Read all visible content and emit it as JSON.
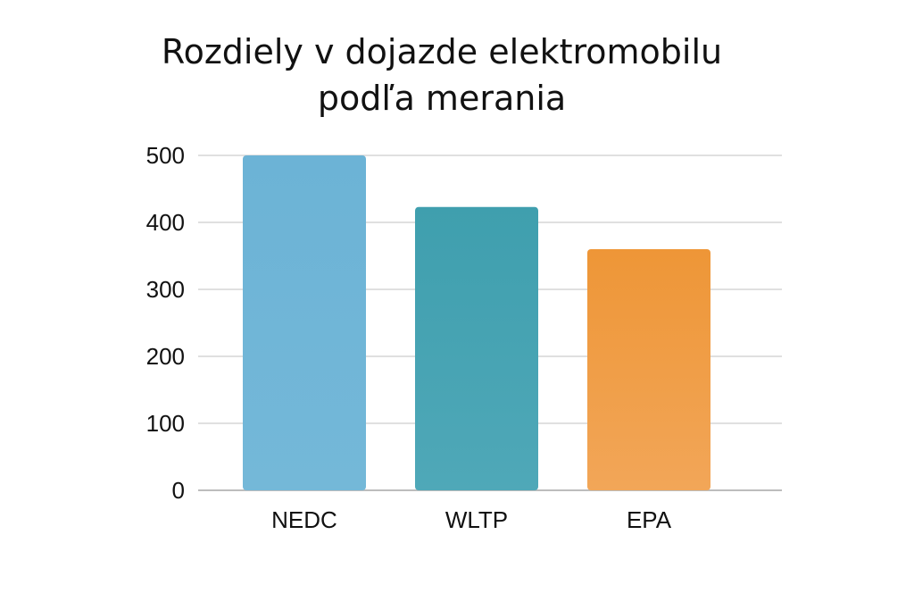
{
  "chart_data": {
    "type": "bar",
    "title_lines": [
      "Rozdiely v dojazde elektromobilu",
      "podľa merania"
    ],
    "categories": [
      "NEDC",
      "WLTP",
      "EPA"
    ],
    "values": [
      500,
      423,
      360
    ],
    "colors": [
      "#6db4d6",
      "#45a3b1",
      "#f09a3e"
    ],
    "ylim": [
      0,
      500
    ],
    "yticks": [
      0,
      100,
      200,
      300,
      400,
      500
    ],
    "grid": true,
    "legend": "none",
    "xlabel": "",
    "ylabel": ""
  }
}
